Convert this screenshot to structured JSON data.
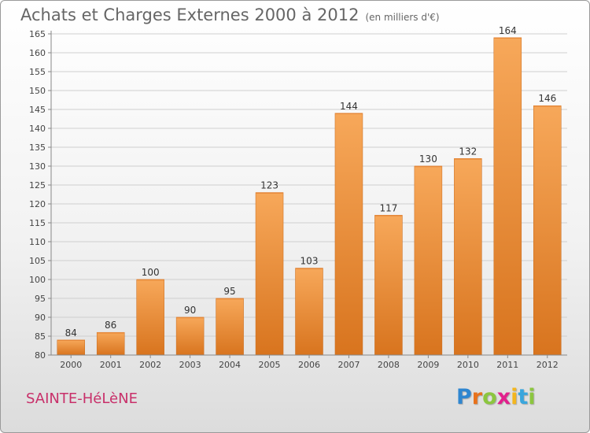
{
  "title": "Achats et Charges Externes 2000 à 2012",
  "subtitle": "(en milliers d'€)",
  "commune": "SAINTE-HéLèNE",
  "logo": {
    "letters": [
      "P",
      "r",
      "o",
      "x",
      "i",
      "t",
      "i"
    ],
    "colors": [
      "#2f86d0",
      "#e8721c",
      "#8cc63f",
      "#e2208c",
      "#f3b61f",
      "#3aa6dd",
      "#8cc63f"
    ]
  },
  "colors": {
    "bar_light": "#f7a85a",
    "bar_dark": "#d8741e",
    "commune_text": "#c8306a"
  },
  "chart_data": {
    "type": "bar",
    "categories": [
      "2000",
      "2001",
      "2002",
      "2003",
      "2004",
      "2005",
      "2006",
      "2007",
      "2008",
      "2009",
      "2010",
      "2011",
      "2012"
    ],
    "values": [
      84,
      86,
      100,
      90,
      95,
      123,
      103,
      144,
      117,
      130,
      132,
      164,
      146
    ],
    "title": "Achats et Charges Externes 2000 à 2012",
    "ylim": [
      80,
      165
    ],
    "yticks": [
      80,
      85,
      90,
      95,
      100,
      105,
      110,
      115,
      120,
      125,
      130,
      135,
      140,
      145,
      150,
      155,
      160,
      165
    ],
    "grid": true,
    "legend": "none"
  }
}
